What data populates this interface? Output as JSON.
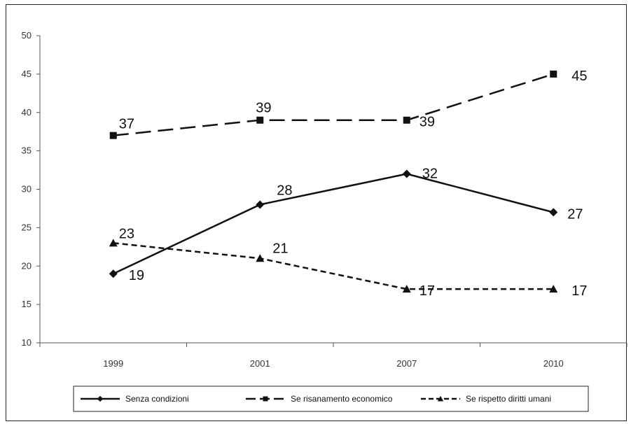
{
  "chart_data": {
    "type": "line",
    "categories": [
      "1999",
      "2001",
      "2007",
      "2010"
    ],
    "ylim": [
      10,
      50
    ],
    "yticks": [
      "10",
      "15",
      "20",
      "25",
      "30",
      "35",
      "40",
      "45",
      "50"
    ],
    "grid": false,
    "legend_position": "bottom",
    "series": [
      {
        "name": "Senza condizioni",
        "values": [
          19,
          28,
          32,
          27
        ],
        "labels": [
          "19",
          "28",
          "32",
          "27"
        ],
        "marker": "diamond",
        "line_style": "solid"
      },
      {
        "name": "Se risanamento economico",
        "values": [
          37,
          39,
          39,
          45
        ],
        "labels": [
          "37",
          "39",
          "39",
          "45"
        ],
        "marker": "square",
        "line_style": "long-dash"
      },
      {
        "name": "Se rispetto diritti umani",
        "values": [
          23,
          21,
          17,
          17
        ],
        "labels": [
          "23",
          "21",
          "17",
          "17"
        ],
        "marker": "triangle",
        "line_style": "short-dash"
      }
    ],
    "colors": {
      "line": "#111111",
      "axis": "#555555",
      "text": "#333333"
    }
  }
}
